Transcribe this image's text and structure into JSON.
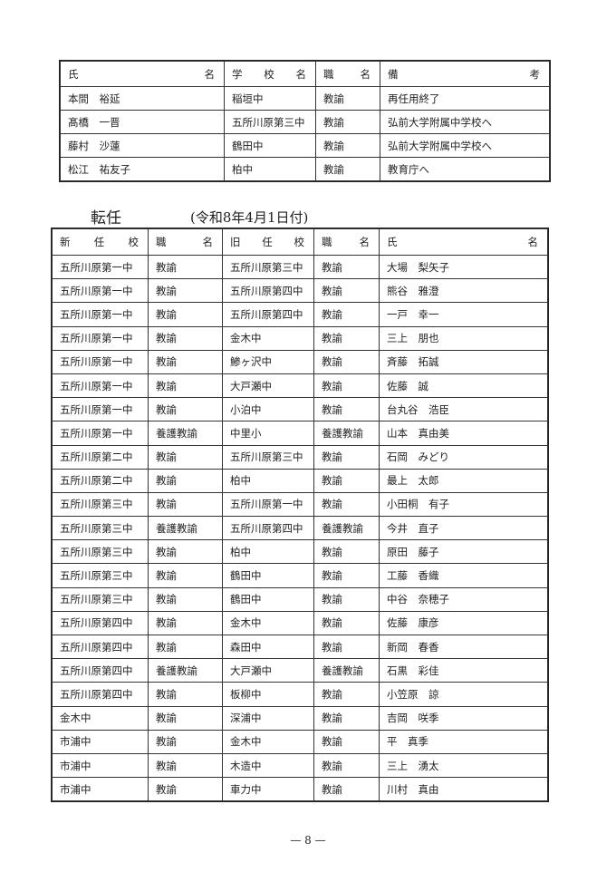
{
  "retirement_table": {
    "headers": [
      "氏　　名",
      "学　校　名",
      "職　　名",
      "備　　考"
    ],
    "header_parts": [
      [
        "氏",
        "名"
      ],
      [
        "学",
        "校",
        "名"
      ],
      [
        "職",
        "名"
      ],
      [
        "備",
        "考"
      ]
    ],
    "rows": [
      [
        "本間　裕延",
        "稲垣中",
        "教諭",
        "再任用終了"
      ],
      [
        "髙橋　一晋",
        "五所川原第三中",
        "教諭",
        "弘前大学附属中学校へ"
      ],
      [
        "藤村　沙蓮",
        "鶴田中",
        "教諭",
        "弘前大学附属中学校へ"
      ],
      [
        "松江　祐友子",
        "柏中",
        "教諭",
        "教育庁へ"
      ]
    ]
  },
  "transfer_section": {
    "title": "転任",
    "date": "(令和8年4月1日付)"
  },
  "transfer_table": {
    "header_parts": [
      [
        "新",
        "任",
        "校"
      ],
      [
        "職",
        "名"
      ],
      [
        "旧",
        "任",
        "校"
      ],
      [
        "職",
        "名"
      ],
      [
        "氏",
        "名"
      ]
    ],
    "rows": [
      [
        "五所川原第一中",
        "教諭",
        "五所川原第三中",
        "教諭",
        "大場　梨矢子"
      ],
      [
        "五所川原第一中",
        "教諭",
        "五所川原第四中",
        "教諭",
        "熊谷　雅澄"
      ],
      [
        "五所川原第一中",
        "教諭",
        "五所川原第四中",
        "教諭",
        "一戸　幸一"
      ],
      [
        "五所川原第一中",
        "教諭",
        "金木中",
        "教諭",
        "三上　朋也"
      ],
      [
        "五所川原第一中",
        "教諭",
        "鯵ヶ沢中",
        "教諭",
        "斉藤　拓誠"
      ],
      [
        "五所川原第一中",
        "教諭",
        "大戸瀬中",
        "教諭",
        "佐藤　誠"
      ],
      [
        "五所川原第一中",
        "教諭",
        "小泊中",
        "教諭",
        "台丸谷　浩臣"
      ],
      [
        "五所川原第一中",
        "養護教諭",
        "中里小",
        "養護教諭",
        "山本　真由美"
      ],
      [
        "五所川原第二中",
        "教諭",
        "五所川原第三中",
        "教諭",
        "石岡　みどり"
      ],
      [
        "五所川原第二中",
        "教諭",
        "柏中",
        "教諭",
        "最上　太郎"
      ],
      [
        "五所川原第三中",
        "教諭",
        "五所川原第一中",
        "教諭",
        "小田桐　有子"
      ],
      [
        "五所川原第三中",
        "養護教諭",
        "五所川原第四中",
        "養護教諭",
        "今井　直子"
      ],
      [
        "五所川原第三中",
        "教諭",
        "柏中",
        "教諭",
        "原田　藤子"
      ],
      [
        "五所川原第三中",
        "教諭",
        "鶴田中",
        "教諭",
        "工藤　香織"
      ],
      [
        "五所川原第三中",
        "教諭",
        "鶴田中",
        "教諭",
        "中谷　奈穂子"
      ],
      [
        "五所川原第四中",
        "教諭",
        "金木中",
        "教諭",
        "佐藤　康彦"
      ],
      [
        "五所川原第四中",
        "教諭",
        "森田中",
        "教諭",
        "新岡　春香"
      ],
      [
        "五所川原第四中",
        "養護教諭",
        "大戸瀬中",
        "養護教諭",
        "石黒　彩佳"
      ],
      [
        "五所川原第四中",
        "教諭",
        "板柳中",
        "教諭",
        "小笠原　諒"
      ],
      [
        "金木中",
        "教諭",
        "深浦中",
        "教諭",
        "吉岡　咲季"
      ],
      [
        "市浦中",
        "教諭",
        "金木中",
        "教諭",
        "平　真季"
      ],
      [
        "市浦中",
        "教諭",
        "木造中",
        "教諭",
        "三上　湧太"
      ],
      [
        "市浦中",
        "教諭",
        "車力中",
        "教諭",
        "川村　真由"
      ]
    ]
  },
  "page_number": "— 8 —"
}
